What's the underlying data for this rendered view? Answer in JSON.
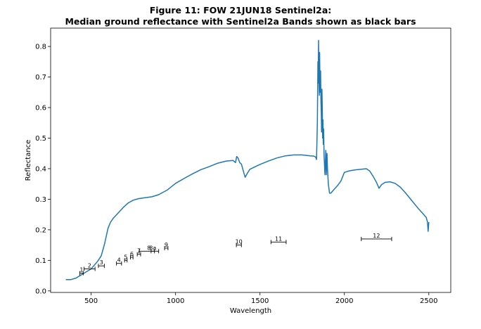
{
  "chart_data": {
    "type": "line",
    "title": "Figure 11: FOW 21JUN18  Sentinel2a:",
    "subtitle": "Median ground reflectance with Sentinel2a Bands shown as black bars",
    "xlabel": "Wavelength",
    "ylabel": "Reflectance",
    "xlim": [
      260,
      2630
    ],
    "ylim": [
      -0.005,
      0.86
    ],
    "xticks": [
      500,
      1000,
      1500,
      2000,
      2500
    ],
    "yticks": [
      0.0,
      0.1,
      0.2,
      0.3,
      0.4,
      0.5,
      0.6,
      0.7,
      0.8
    ],
    "grid": false,
    "series": [
      {
        "color": "#1f77b4",
        "points": [
          [
            350,
            0.037
          ],
          [
            380,
            0.037
          ],
          [
            410,
            0.042
          ],
          [
            440,
            0.052
          ],
          [
            470,
            0.062
          ],
          [
            500,
            0.072
          ],
          [
            520,
            0.085
          ],
          [
            540,
            0.098
          ],
          [
            560,
            0.115
          ],
          [
            580,
            0.155
          ],
          [
            600,
            0.205
          ],
          [
            615,
            0.225
          ],
          [
            630,
            0.237
          ],
          [
            660,
            0.255
          ],
          [
            690,
            0.273
          ],
          [
            720,
            0.288
          ],
          [
            750,
            0.297
          ],
          [
            780,
            0.302
          ],
          [
            820,
            0.305
          ],
          [
            860,
            0.308
          ],
          [
            900,
            0.315
          ],
          [
            950,
            0.33
          ],
          [
            1000,
            0.352
          ],
          [
            1050,
            0.368
          ],
          [
            1100,
            0.383
          ],
          [
            1150,
            0.397
          ],
          [
            1200,
            0.407
          ],
          [
            1250,
            0.418
          ],
          [
            1300,
            0.425
          ],
          [
            1340,
            0.427
          ],
          [
            1355,
            0.42
          ],
          [
            1362,
            0.44
          ],
          [
            1370,
            0.435
          ],
          [
            1380,
            0.42
          ],
          [
            1390,
            0.415
          ],
          [
            1400,
            0.395
          ],
          [
            1412,
            0.372
          ],
          [
            1425,
            0.385
          ],
          [
            1440,
            0.398
          ],
          [
            1455,
            0.402
          ],
          [
            1470,
            0.406
          ],
          [
            1500,
            0.414
          ],
          [
            1550,
            0.425
          ],
          [
            1600,
            0.435
          ],
          [
            1650,
            0.442
          ],
          [
            1700,
            0.445
          ],
          [
            1750,
            0.445
          ],
          [
            1800,
            0.442
          ],
          [
            1820,
            0.441
          ],
          [
            1830,
            0.438
          ],
          [
            1835,
            0.43
          ],
          [
            1840,
            0.55
          ],
          [
            1843,
            0.75
          ],
          [
            1845,
            0.68
          ],
          [
            1847,
            0.82
          ],
          [
            1849,
            0.7
          ],
          [
            1851,
            0.64
          ],
          [
            1853,
            0.78
          ],
          [
            1855,
            0.7
          ],
          [
            1857,
            0.65
          ],
          [
            1859,
            0.72
          ],
          [
            1861,
            0.62
          ],
          [
            1863,
            0.58
          ],
          [
            1865,
            0.52
          ],
          [
            1867,
            0.66
          ],
          [
            1869,
            0.6
          ],
          [
            1871,
            0.5
          ],
          [
            1873,
            0.56
          ],
          [
            1875,
            0.48
          ],
          [
            1877,
            0.53
          ],
          [
            1880,
            0.44
          ],
          [
            1885,
            0.38
          ],
          [
            1890,
            0.46
          ],
          [
            1893,
            0.38
          ],
          [
            1897,
            0.45
          ],
          [
            1900,
            0.4
          ],
          [
            1905,
            0.35
          ],
          [
            1912,
            0.32
          ],
          [
            1920,
            0.32
          ],
          [
            1940,
            0.333
          ],
          [
            1960,
            0.345
          ],
          [
            1980,
            0.36
          ],
          [
            2000,
            0.388
          ],
          [
            2030,
            0.393
          ],
          [
            2060,
            0.396
          ],
          [
            2100,
            0.398
          ],
          [
            2130,
            0.4
          ],
          [
            2150,
            0.392
          ],
          [
            2170,
            0.375
          ],
          [
            2190,
            0.355
          ],
          [
            2205,
            0.336
          ],
          [
            2220,
            0.348
          ],
          [
            2240,
            0.355
          ],
          [
            2270,
            0.357
          ],
          [
            2300,
            0.352
          ],
          [
            2330,
            0.34
          ],
          [
            2360,
            0.322
          ],
          [
            2400,
            0.295
          ],
          [
            2440,
            0.268
          ],
          [
            2470,
            0.25
          ],
          [
            2485,
            0.24
          ],
          [
            2492,
            0.225
          ],
          [
            2496,
            0.195
          ],
          [
            2500,
            0.225
          ]
        ]
      }
    ],
    "bands": [
      {
        "label": "1",
        "start": 433,
        "end": 453,
        "y": 0.058
      },
      {
        "label": "2",
        "start": 458,
        "end": 523,
        "y": 0.072
      },
      {
        "label": "3",
        "start": 543,
        "end": 578,
        "y": 0.082
      },
      {
        "label": "4",
        "start": 650,
        "end": 680,
        "y": 0.09
      },
      {
        "label": "5",
        "start": 698,
        "end": 713,
        "y": 0.1
      },
      {
        "label": "6",
        "start": 733,
        "end": 748,
        "y": 0.11
      },
      {
        "label": "7",
        "start": 773,
        "end": 793,
        "y": 0.12
      },
      {
        "label": "8",
        "start": 785,
        "end": 900,
        "y": 0.13
      },
      {
        "label": "8a",
        "start": 855,
        "end": 875,
        "y": 0.13
      },
      {
        "label": "9",
        "start": 935,
        "end": 955,
        "y": 0.14
      },
      {
        "label": "10",
        "start": 1360,
        "end": 1390,
        "y": 0.15
      },
      {
        "label": "11",
        "start": 1565,
        "end": 1655,
        "y": 0.16
      },
      {
        "label": "12",
        "start": 2100,
        "end": 2280,
        "y": 0.17
      }
    ]
  }
}
